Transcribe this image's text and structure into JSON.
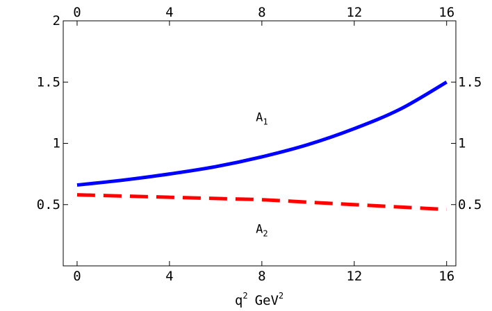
{
  "chart_data": {
    "type": "line",
    "title": "",
    "xlabel": {
      "base": "q",
      "sup": "2",
      "unit": "GeV",
      "unit_sup": "2"
    },
    "ylabel": "",
    "xlim": [
      -0.6,
      16.4
    ],
    "ylim": [
      0,
      2
    ],
    "grid": false,
    "frame": true,
    "x_ticks": [
      0,
      4,
      8,
      12,
      16
    ],
    "x_tick_labels": [
      "0",
      "4",
      "8",
      "12",
      "16"
    ],
    "y_ticks_left": [
      0.5,
      1,
      1.5,
      2
    ],
    "y_tick_labels_left": [
      "0.5",
      "1",
      "1.5",
      "2"
    ],
    "y_ticks_right": [
      0.5,
      1,
      1.5
    ],
    "y_tick_labels_right": [
      "0.5",
      "1",
      "1.5"
    ],
    "x_ticks_top": [
      0,
      4,
      8,
      12,
      16
    ],
    "x_tick_labels_top": [
      "0",
      "4",
      "8",
      "12",
      "16"
    ],
    "series": [
      {
        "color": "#0000ff",
        "style": "solid",
        "x": [
          0,
          2,
          4,
          6,
          8,
          10,
          12,
          14,
          16
        ],
        "y": [
          0.66,
          0.7,
          0.75,
          0.81,
          0.89,
          0.99,
          1.12,
          1.28,
          1.5
        ]
      },
      {
        "color": "#ff0000",
        "style": "dashed",
        "x": [
          0,
          2,
          4,
          6,
          8,
          10,
          12,
          14,
          16
        ],
        "y": [
          0.58,
          0.57,
          0.56,
          0.55,
          0.54,
          0.52,
          0.5,
          0.48,
          0.46
        ]
      }
    ],
    "annotations": [
      {
        "base": "A",
        "sub": "1",
        "x": 8.0,
        "y": 1.18
      },
      {
        "base": "A",
        "sub": "2",
        "x": 8.0,
        "y": 0.27
      }
    ]
  }
}
